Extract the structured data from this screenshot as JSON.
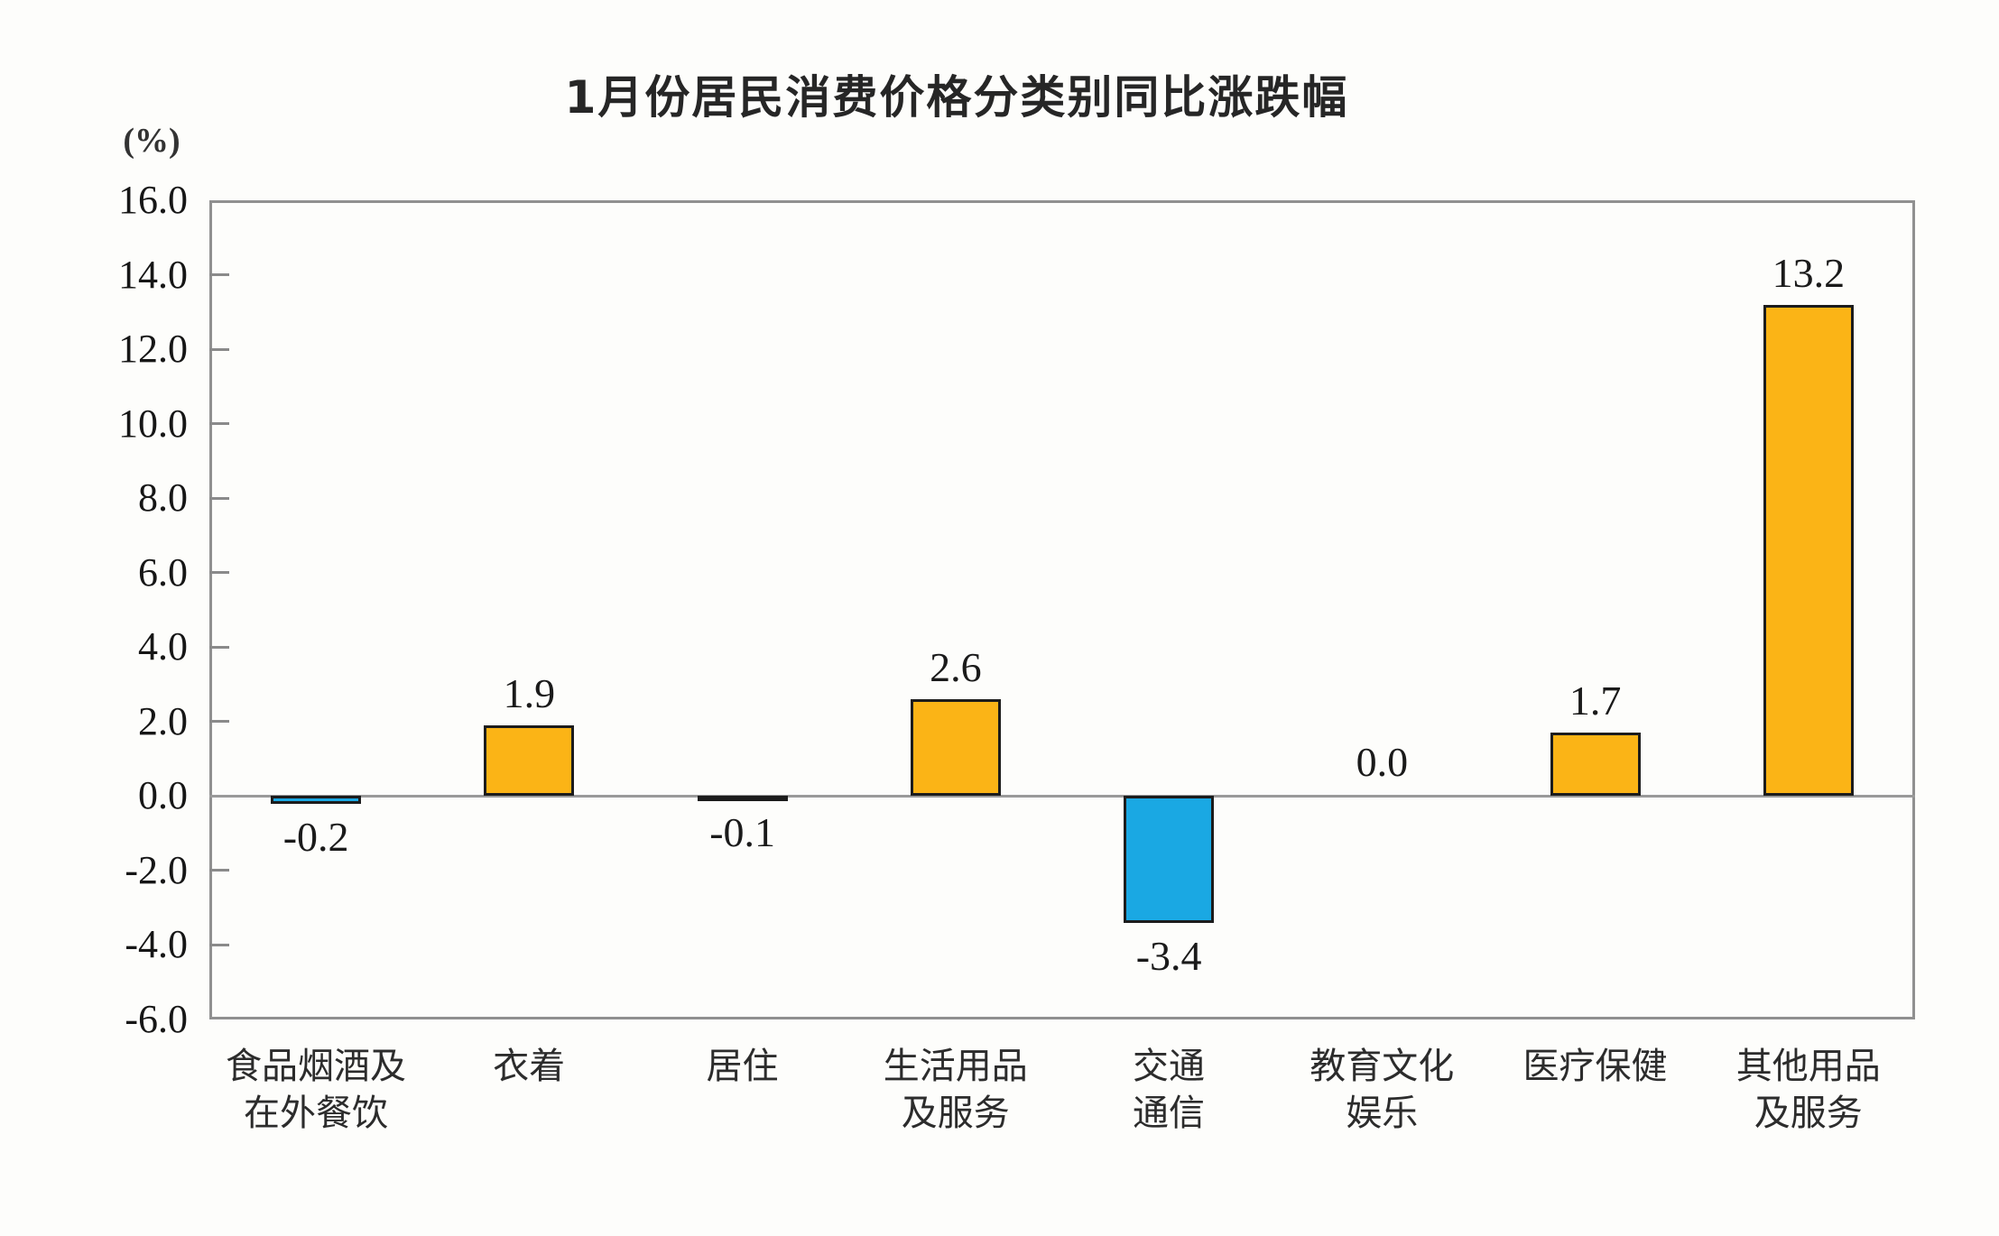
{
  "page": {
    "background": "#fdfdfb"
  },
  "chart_data": {
    "type": "bar",
    "title": "1月份居民消费价格分类别同比涨跌幅",
    "unit_label": "(%)",
    "categories": [
      "食品烟酒及在外餐饮",
      "衣着",
      "居住",
      "生活用品及服务",
      "交通通信",
      "教育文化娱乐",
      "医疗保健",
      "其他用品及服务"
    ],
    "category_lines": [
      [
        "食品烟酒及",
        "在外餐饮"
      ],
      [
        "衣着"
      ],
      [
        "居住"
      ],
      [
        "生活用品",
        "及服务"
      ],
      [
        "交通",
        "通信"
      ],
      [
        "教育文化",
        "娱乐"
      ],
      [
        "医疗保健"
      ],
      [
        "其他用品",
        "及服务"
      ]
    ],
    "values": [
      -0.2,
      1.9,
      -0.1,
      2.6,
      -3.4,
      0.0,
      1.7,
      13.2
    ],
    "value_labels": [
      "-0.2",
      "1.9",
      "-0.1",
      "2.6",
      "-3.4",
      "0.0",
      "1.7",
      "13.2"
    ],
    "xlabel": "",
    "ylabel": "",
    "ylim": [
      -6.0,
      16.0
    ],
    "ytick_step": 2.0,
    "ytick_labels": [
      "16.0",
      "14.0",
      "12.0",
      "10.0",
      "8.0",
      "6.0",
      "4.0",
      "2.0",
      "0.0",
      "-2.0",
      "-4.0",
      "-6.0"
    ],
    "grid": false,
    "legend": "none",
    "colors": {
      "positive_bar": "#FBB416",
      "negative_bar": "#1AA8E3",
      "bar_border": "#1C1C1C",
      "plot_border": "#909090",
      "zero_line": "#9A9A9A",
      "text": "#1E1E1E"
    }
  }
}
